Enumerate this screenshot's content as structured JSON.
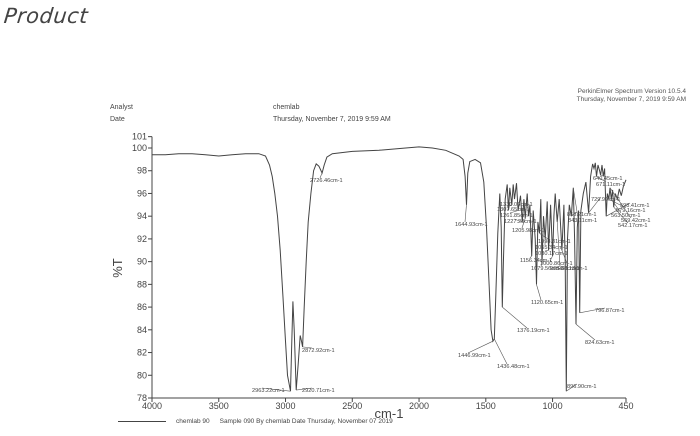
{
  "page": {
    "handwritten_title": "Product",
    "software": "PerkinElmer Spectrum Version 10.5.4",
    "header_date": "Thursday, November 7, 2019 9:59 AM",
    "analyst_label": "Analyst",
    "analyst_value": "chemlab",
    "date_label": "Date",
    "date_value": "Thursday, November 7, 2019 9:59 AM",
    "legend": {
      "name": "chemlab 90",
      "description": "Sample 090 By chemlab Date Thursday, November 07 2019"
    }
  },
  "chart_data": {
    "type": "line",
    "title": "",
    "xlabel": "cm-1",
    "ylabel": "%T",
    "xlim": [
      4000,
      450
    ],
    "ylim": [
      78,
      101
    ],
    "x_ticks": [
      4000,
      3500,
      3000,
      2500,
      2000,
      1500,
      1000,
      450
    ],
    "y_ticks": [
      78,
      80,
      82,
      84,
      86,
      88,
      90,
      92,
      94,
      96,
      98,
      100,
      101
    ],
    "grid": false,
    "series": [
      {
        "name": "chemlab 90",
        "color": "#444444",
        "points": [
          [
            4000,
            99.4
          ],
          [
            3900,
            99.4
          ],
          [
            3800,
            99.5
          ],
          [
            3700,
            99.5
          ],
          [
            3600,
            99.4
          ],
          [
            3500,
            99.3
          ],
          [
            3400,
            99.4
          ],
          [
            3300,
            99.5
          ],
          [
            3200,
            99.5
          ],
          [
            3150,
            99.3
          ],
          [
            3120,
            98.5
          ],
          [
            3100,
            97.5
          ],
          [
            3080,
            96.0
          ],
          [
            3060,
            94.0
          ],
          [
            3040,
            91.0
          ],
          [
            3020,
            87.0
          ],
          [
            3000,
            83.0
          ],
          [
            2985,
            80.0
          ],
          [
            2963,
            78.6
          ],
          [
            2955,
            82.0
          ],
          [
            2945,
            86.5
          ],
          [
            2935,
            84.0
          ],
          [
            2920,
            78.7
          ],
          [
            2905,
            81.0
          ],
          [
            2890,
            83.5
          ],
          [
            2880,
            83.0
          ],
          [
            2872,
            82.5
          ],
          [
            2860,
            86.0
          ],
          [
            2845,
            90.0
          ],
          [
            2830,
            93.5
          ],
          [
            2810,
            96.0
          ],
          [
            2790,
            98.0
          ],
          [
            2770,
            98.6
          ],
          [
            2750,
            98.4
          ],
          [
            2726,
            97.8
          ],
          [
            2710,
            98.5
          ],
          [
            2690,
            99.2
          ],
          [
            2650,
            99.5
          ],
          [
            2500,
            99.7
          ],
          [
            2300,
            99.8
          ],
          [
            2100,
            100.0
          ],
          [
            2000,
            100.1
          ],
          [
            1900,
            100.0
          ],
          [
            1800,
            99.8
          ],
          [
            1700,
            99.3
          ],
          [
            1670,
            99.0
          ],
          [
            1655,
            97.5
          ],
          [
            1644.93,
            95.0
          ],
          [
            1635,
            97.8
          ],
          [
            1620,
            98.8
          ],
          [
            1580,
            99.0
          ],
          [
            1540,
            98.7
          ],
          [
            1515,
            97.0
          ],
          [
            1495,
            93.0
          ],
          [
            1475,
            88.0
          ],
          [
            1460,
            84.0
          ],
          [
            1446.99,
            83.0
          ],
          [
            1436.48,
            83.2
          ],
          [
            1425,
            87.0
          ],
          [
            1410,
            92.5
          ],
          [
            1395,
            96.0
          ],
          [
            1385,
            93.0
          ],
          [
            1376.19,
            86.0
          ],
          [
            1368,
            90.0
          ],
          [
            1355,
            95.5
          ],
          [
            1340,
            96.8
          ],
          [
            1330,
            94.5
          ],
          [
            1320,
            96.5
          ],
          [
            1305,
            95.0
          ],
          [
            1295,
            96.8
          ],
          [
            1285,
            95.5
          ],
          [
            1270,
            96.9
          ],
          [
            1258,
            94.5
          ],
          [
            1240,
            95.8
          ],
          [
            1227,
            93.5
          ],
          [
            1215,
            95.5
          ],
          [
            1205,
            93.8
          ],
          [
            1190,
            96.0
          ],
          [
            1180,
            94.0
          ],
          [
            1170,
            95.0
          ],
          [
            1156,
            90.5
          ],
          [
            1145,
            94.5
          ],
          [
            1130,
            92.0
          ],
          [
            1120.65,
            88.0
          ],
          [
            1110,
            93.5
          ],
          [
            1098,
            92.5
          ],
          [
            1088,
            95.5
          ],
          [
            1079,
            89.8
          ],
          [
            1068,
            94.0
          ],
          [
            1055,
            92.0
          ],
          [
            1040,
            95.3
          ],
          [
            1030,
            91.0
          ],
          [
            1015,
            95.0
          ],
          [
            1000,
            90.5
          ],
          [
            990,
            94.0
          ],
          [
            980,
            96.0
          ],
          [
            965,
            93.5
          ],
          [
            950,
            95.5
          ],
          [
            930,
            91.0
          ],
          [
            915,
            95.0
          ],
          [
            905,
            90.0
          ],
          [
            896.9,
            78.6
          ],
          [
            888,
            92.0
          ],
          [
            875,
            95.0
          ],
          [
            860,
            94.0
          ],
          [
            845,
            96.5
          ],
          [
            835,
            92.0
          ],
          [
            824.63,
            84.5
          ],
          [
            815,
            93.0
          ],
          [
            805,
            94.5
          ],
          [
            796.87,
            85.5
          ],
          [
            788,
            94.5
          ],
          [
            770,
            96.0
          ],
          [
            750,
            97.0
          ],
          [
            729.9,
            94.3
          ],
          [
            715,
            97.5
          ],
          [
            700,
            98.6
          ],
          [
            690,
            98.2
          ],
          [
            680,
            98.7
          ],
          [
            671,
            97.5
          ],
          [
            660,
            98.5
          ],
          [
            648,
            98.0
          ],
          [
            640,
            97.6
          ],
          [
            630,
            98.5
          ],
          [
            620,
            97.5
          ],
          [
            610,
            98.2
          ],
          [
            598,
            94.0
          ],
          [
            590,
            96.0
          ],
          [
            579,
            95.5
          ],
          [
            570,
            96.5
          ],
          [
            560,
            95.5
          ],
          [
            550,
            96.3
          ],
          [
            542,
            94.8
          ],
          [
            530,
            96.0
          ],
          [
            515,
            95.5
          ],
          [
            500,
            96.4
          ],
          [
            485,
            95.8
          ],
          [
            470,
            96.6
          ],
          [
            450,
            97.2
          ]
        ]
      }
    ],
    "peak_annotations": [
      {
        "label": "2963.22cm-1",
        "x": 2963.22,
        "y": 78.6
      },
      {
        "label": "2920.71cm-1",
        "x": 2920.71,
        "y": 78.7
      },
      {
        "label": "2872.92cm-1",
        "x": 2872.92,
        "y": 82.5
      },
      {
        "label": "2726.46cm-1",
        "x": 2726.46,
        "y": 97.8
      },
      {
        "label": "1644.93cm-1",
        "x": 1644.93,
        "y": 95.0
      },
      {
        "label": "1446.99cm-1",
        "x": 1446.99,
        "y": 83.0
      },
      {
        "label": "1436.48cm-1",
        "x": 1436.48,
        "y": 83.2
      },
      {
        "label": "1376.19cm-1",
        "x": 1376.19,
        "y": 86.0
      },
      {
        "label": "1330.06cm-1",
        "x": 1330,
        "y": 94.5
      },
      {
        "label": "1307.65cm-1",
        "x": 1305,
        "y": 95.0
      },
      {
        "label": "1261.85cm-1",
        "x": 1258,
        "y": 94.5
      },
      {
        "label": "1227.28cm-1",
        "x": 1227,
        "y": 93.5
      },
      {
        "label": "1205.98cm-1",
        "x": 1205,
        "y": 93.8
      },
      {
        "label": "1156.34cm-1",
        "x": 1156,
        "y": 90.5
      },
      {
        "label": "1120.65cm-1",
        "x": 1120.65,
        "y": 88.0
      },
      {
        "label": "1079.56cm-1",
        "x": 1079,
        "y": 89.8
      },
      {
        "label": "1098.31cm-1",
        "x": 1098,
        "y": 92.5
      },
      {
        "label": "1055.34cm-1",
        "x": 1055,
        "y": 92.0
      },
      {
        "label": "1030.17cm-1",
        "x": 1030,
        "y": 91.0
      },
      {
        "label": "1000.86cm-1",
        "x": 1000,
        "y": 90.5
      },
      {
        "label": "965.68cm-1",
        "x": 965,
        "y": 93.5
      },
      {
        "label": "930.13cm-1",
        "x": 930,
        "y": 91.0
      },
      {
        "label": "896.90cm-1",
        "x": 896.9,
        "y": 78.6
      },
      {
        "label": "824.63cm-1",
        "x": 824.63,
        "y": 84.5
      },
      {
        "label": "796.87cm-1",
        "x": 796.87,
        "y": 85.5
      },
      {
        "label": "729.90cm-1",
        "x": 729.9,
        "y": 94.3
      },
      {
        "label": "640.45cm-1",
        "x": 640,
        "y": 97.6
      },
      {
        "label": "671.11cm-1",
        "x": 671,
        "y": 97.5
      },
      {
        "label": "598.41cm-1",
        "x": 598,
        "y": 94.0
      },
      {
        "label": "579.16cm-1",
        "x": 579,
        "y": 95.5
      },
      {
        "label": "563.50cm-1",
        "x": 560,
        "y": 95.5
      },
      {
        "label": "542.17cm-1",
        "x": 542,
        "y": 94.8
      },
      {
        "label": "569.42cm-1",
        "x": 570,
        "y": 96.5
      },
      {
        "label": "853.21cm-1",
        "x": 860,
        "y": 94.0
      },
      {
        "label": "843.11cm-1",
        "x": 845,
        "y": 96.5
      }
    ]
  }
}
